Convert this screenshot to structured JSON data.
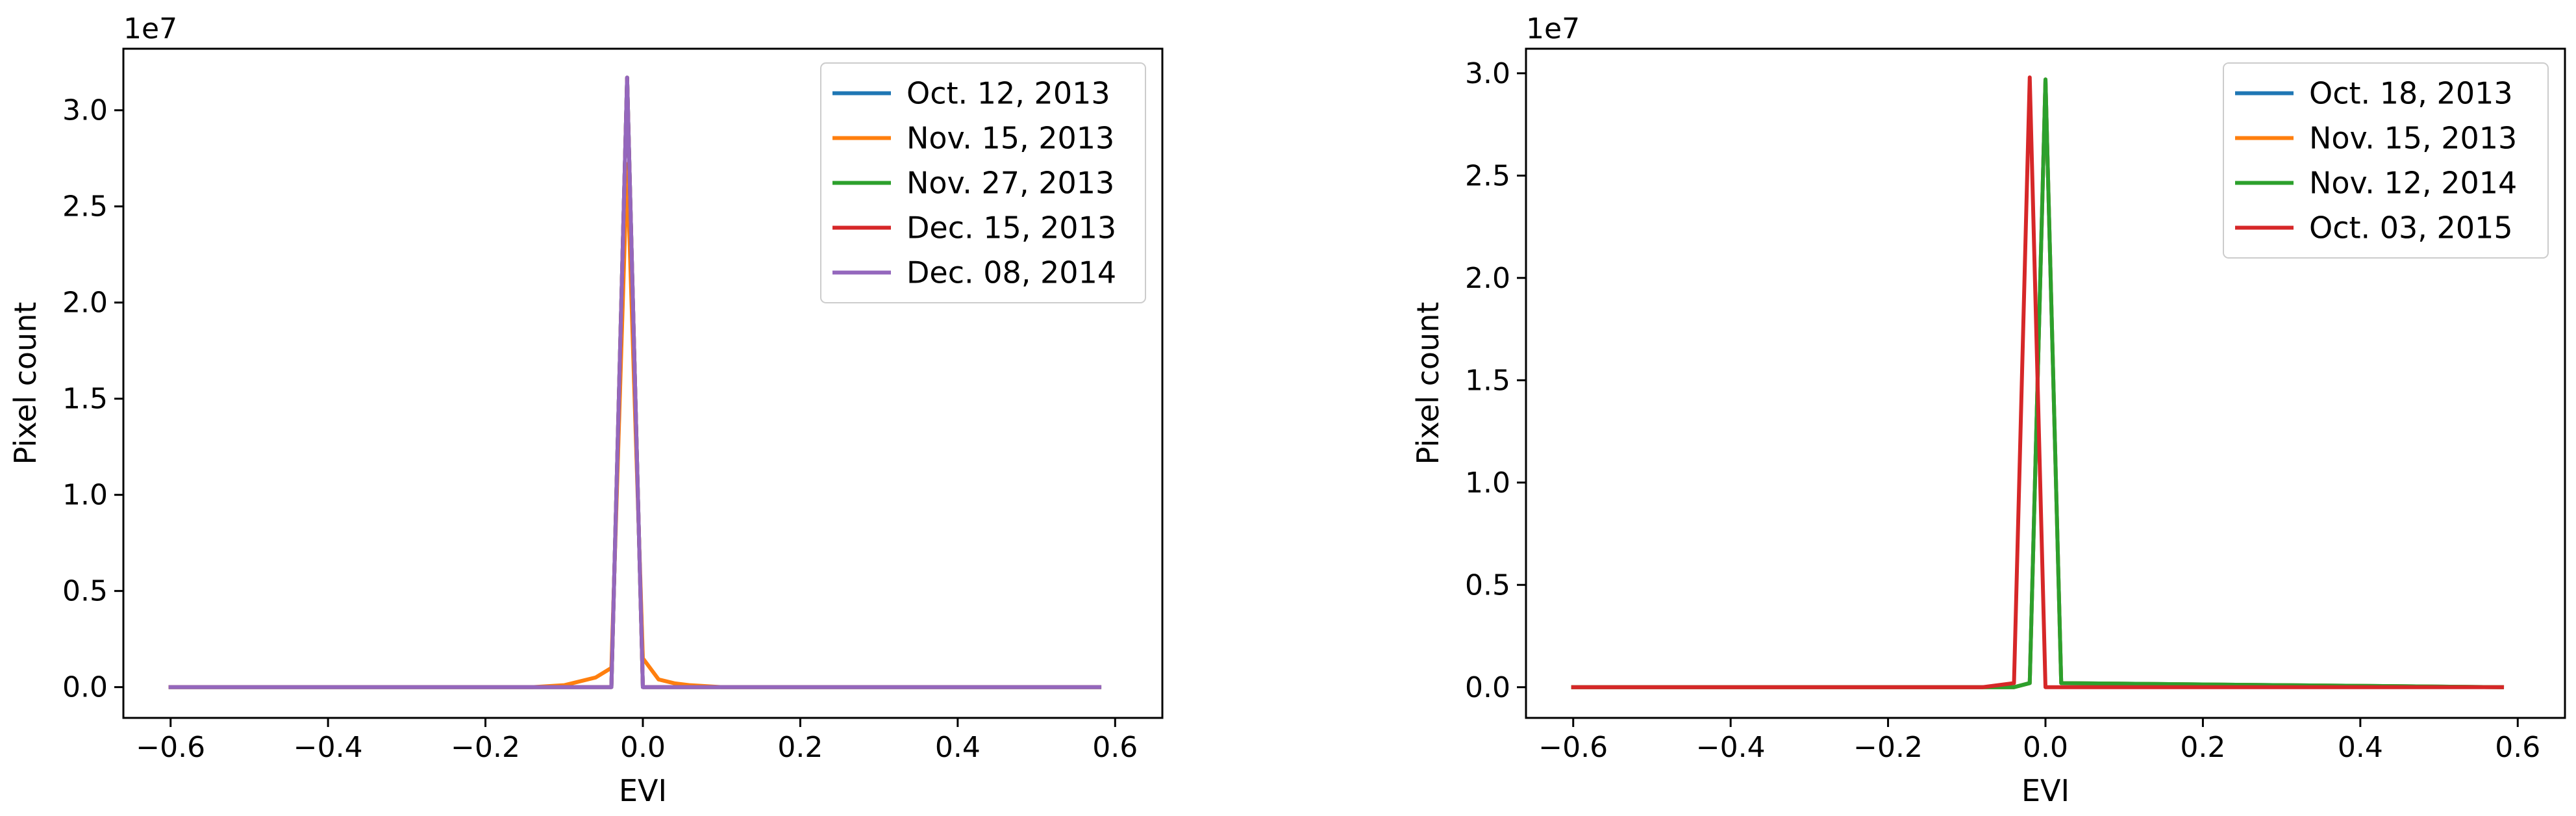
{
  "chart_data": [
    {
      "type": "line",
      "title": "",
      "xlabel": "EVI",
      "ylabel": "Pixel count",
      "y_offset_text": "1e7",
      "xlim": [
        -0.66,
        0.66
      ],
      "ylim": [
        -0.16,
        3.32
      ],
      "xticks": [
        -0.6,
        -0.4,
        -0.2,
        0.0,
        0.2,
        0.4,
        0.6
      ],
      "xtick_labels": [
        "−0.6",
        "−0.4",
        "−0.2",
        "0.0",
        "0.2",
        "0.4",
        "0.6"
      ],
      "yticks": [
        0.0,
        0.5,
        1.0,
        1.5,
        2.0,
        2.5,
        3.0
      ],
      "ytick_labels": [
        "0.0",
        "0.5",
        "1.0",
        "1.5",
        "2.0",
        "2.5",
        "3.0"
      ],
      "grid": false,
      "legend_position": "top-right",
      "series": [
        {
          "name": "Oct. 12, 2013",
          "color": "#1f77b4",
          "x": [
            -0.6,
            -0.06,
            -0.04,
            -0.02,
            0.0,
            0.02,
            0.06,
            0.58
          ],
          "y": [
            0.0,
            0.0,
            0.0,
            3.17,
            0.0,
            0.0,
            0.0,
            0.0
          ]
        },
        {
          "name": "Nov. 15, 2013",
          "color": "#ff7f0e",
          "x": [
            -0.6,
            -0.14,
            -0.1,
            -0.06,
            -0.04,
            -0.02,
            0.0,
            0.02,
            0.04,
            0.06,
            0.1,
            0.14,
            0.58
          ],
          "y": [
            0.0,
            0.0,
            0.01,
            0.05,
            0.1,
            2.72,
            0.15,
            0.04,
            0.02,
            0.01,
            0.0,
            0.0,
            0.0
          ]
        },
        {
          "name": "Nov. 27, 2013",
          "color": "#2ca02c",
          "x": [
            -0.6,
            -0.06,
            -0.04,
            -0.02,
            0.0,
            0.02,
            0.06,
            0.58
          ],
          "y": [
            0.0,
            0.0,
            0.0,
            3.17,
            0.0,
            0.0,
            0.0,
            0.0
          ]
        },
        {
          "name": "Dec. 15, 2013",
          "color": "#d62728",
          "x": [
            -0.6,
            -0.06,
            -0.04,
            -0.02,
            0.0,
            0.02,
            0.06,
            0.58
          ],
          "y": [
            0.0,
            0.0,
            0.0,
            3.17,
            0.0,
            0.0,
            0.0,
            0.0
          ]
        },
        {
          "name": "Dec. 08, 2014",
          "color": "#9467bd",
          "x": [
            -0.6,
            -0.06,
            -0.04,
            -0.02,
            0.0,
            0.02,
            0.06,
            0.58
          ],
          "y": [
            0.0,
            0.0,
            0.0,
            3.17,
            0.0,
            0.0,
            0.0,
            0.0
          ]
        }
      ]
    },
    {
      "type": "line",
      "title": "",
      "xlabel": "EVI",
      "ylabel": "Pixel count",
      "y_offset_text": "1e7",
      "xlim": [
        -0.66,
        0.66
      ],
      "ylim": [
        -0.15,
        3.12
      ],
      "xticks": [
        -0.6,
        -0.4,
        -0.2,
        0.0,
        0.2,
        0.4,
        0.6
      ],
      "xtick_labels": [
        "−0.6",
        "−0.4",
        "−0.2",
        "0.0",
        "0.2",
        "0.4",
        "0.6"
      ],
      "yticks": [
        0.0,
        0.5,
        1.0,
        1.5,
        2.0,
        2.5,
        3.0
      ],
      "ytick_labels": [
        "0.0",
        "0.5",
        "1.0",
        "1.5",
        "2.0",
        "2.5",
        "3.0"
      ],
      "grid": false,
      "legend_position": "top-right",
      "series": [
        {
          "name": "Oct. 18, 2013",
          "color": "#1f77b4",
          "x": [
            -0.6,
            -0.04,
            -0.02,
            0.0,
            0.02,
            0.58
          ],
          "y": [
            0.0,
            0.0,
            0.02,
            2.97,
            0.02,
            0.0
          ]
        },
        {
          "name": "Nov. 15, 2013",
          "color": "#ff7f0e",
          "x": [
            -0.6,
            -0.04,
            -0.02,
            0.0,
            0.02,
            0.58
          ],
          "y": [
            0.0,
            0.0,
            0.02,
            2.97,
            0.02,
            0.0
          ]
        },
        {
          "name": "Nov. 12, 2014",
          "color": "#2ca02c",
          "x": [
            -0.6,
            -0.04,
            -0.02,
            0.0,
            0.02,
            0.58
          ],
          "y": [
            0.0,
            0.0,
            0.02,
            2.97,
            0.02,
            0.0
          ]
        },
        {
          "name": "Oct. 03, 2015",
          "color": "#d62728",
          "x": [
            -0.6,
            -0.08,
            -0.06,
            -0.04,
            -0.02,
            0.0,
            0.02,
            0.58
          ],
          "y": [
            0.0,
            0.0,
            0.01,
            0.02,
            2.98,
            0.0,
            0.0,
            0.0
          ]
        }
      ]
    }
  ]
}
